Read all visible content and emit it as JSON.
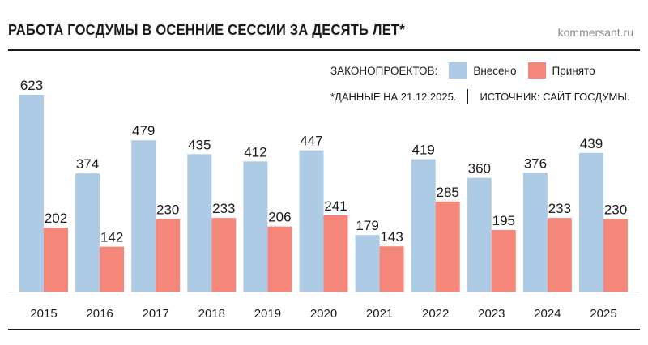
{
  "header": {
    "title": "РАБОТА ГОСДУМЫ В ОСЕННИЕ СЕССИИ ЗА ДЕСЯТЬ ЛЕТ*",
    "site": "kommersant.ru"
  },
  "legend": {
    "prefix": "ЗАКОНОПРОЕКТОВ:",
    "introduced": "Внесено",
    "adopted": "Принято"
  },
  "footnote": {
    "date_note": "*ДАННЫЕ НА 21.12.2025.",
    "source": "ИСТОЧНИК: САЙТ ГОСДУМЫ."
  },
  "colors": {
    "introduced": "#aecbe6",
    "adopted": "#f4877a"
  },
  "chart_data": {
    "type": "bar",
    "title": "РАБОТА ГОСДУМЫ В ОСЕННИЕ СЕССИИ ЗА ДЕСЯТЬ ЛЕТ*",
    "categories": [
      "2015",
      "2016",
      "2017",
      "2018",
      "2019",
      "2020",
      "2021",
      "2022",
      "2023",
      "2024",
      "2025"
    ],
    "series": [
      {
        "name": "Внесено",
        "values": [
          623,
          374,
          479,
          435,
          412,
          447,
          179,
          419,
          360,
          376,
          439
        ]
      },
      {
        "name": "Принято",
        "values": [
          202,
          142,
          230,
          233,
          206,
          241,
          143,
          285,
          195,
          233,
          230
        ]
      }
    ],
    "xlabel": "",
    "ylabel": "",
    "ylim": [
      0,
      623
    ],
    "grid": false,
    "legend": "top-right"
  }
}
